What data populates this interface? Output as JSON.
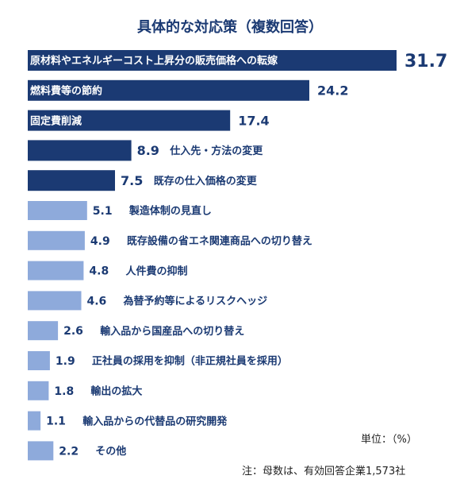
{
  "chart_data": {
    "type": "bar",
    "orientation": "horizontal",
    "title": "具体的な対応策（複数回答）",
    "categories": [
      "原材料やエネルギーコスト上昇分の販売価格への転嫁",
      "燃料費等の節約",
      "固定費削減",
      "仕入先・方法の変更",
      "既存の仕入価格の変更",
      "製造体制の見直し",
      "既存設備の省エネ関連商品への切り替え",
      "人件費の抑制",
      "為替予約等によるリスクヘッジ",
      "輸入品から国産品への切り替え",
      "正社員の採用を抑制（非正規社員を採用）",
      "輸出の拡大",
      "輸入品からの代替品の研究開発",
      "その他"
    ],
    "values": [
      31.7,
      24.2,
      17.4,
      8.9,
      7.5,
      5.1,
      4.9,
      4.8,
      4.6,
      2.6,
      1.9,
      1.8,
      1.1,
      2.2
    ],
    "value_labels": [
      "31.7",
      "24.2",
      "17.4",
      "8.9",
      "7.5",
      "5.1",
      "4.9",
      "4.8",
      "4.6",
      "2.6",
      "1.9",
      "1.8",
      "1.1",
      "2.2"
    ],
    "xlim": [
      0,
      31.7
    ],
    "grid": false,
    "colors": {
      "dark_bar": "#1b3a73",
      "light_bar": "#8eaadb",
      "label_on_bar": "#ffffff",
      "label_dark": "#1b3a73",
      "value_text": "#1b3a73"
    }
  },
  "notes": {
    "unit": "単位：（%）",
    "base": "注：母数は、有効回答企業1,573社"
  }
}
